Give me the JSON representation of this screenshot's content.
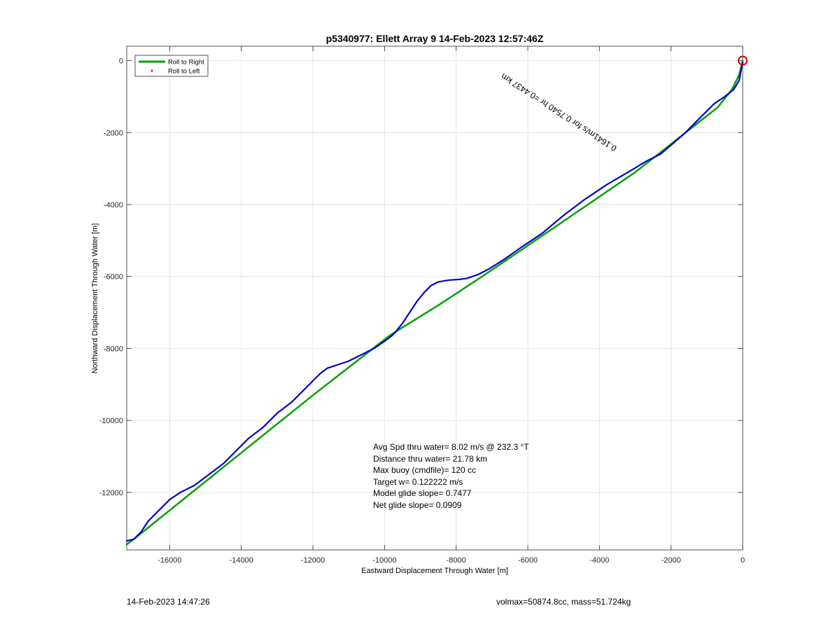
{
  "chart_data": {
    "type": "line",
    "title": "p5340977: Ellett Array 9 14-Feb-2023 12:57:46Z",
    "xlabel": "Eastward Displacement Through Water [m]",
    "ylabel": "Northward Displacement Through Water [m]",
    "xlim": [
      -17200,
      0
    ],
    "ylim": [
      -13600,
      400
    ],
    "x_ticks": [
      -16000,
      -14000,
      -12000,
      -10000,
      -8000,
      -6000,
      -4000,
      -2000,
      0
    ],
    "x_tick_labels": [
      "-16000",
      "-14000",
      "-12000",
      "-10000",
      "-8000",
      "-6000",
      "-4000",
      "-2000",
      "0"
    ],
    "y_ticks": [
      0,
      -2000,
      -4000,
      -6000,
      -8000,
      -10000,
      -12000
    ],
    "y_tick_labels": [
      "0",
      "-2000",
      "-4000",
      "-6000",
      "-8000",
      "-10000",
      "-12000"
    ],
    "grid": true,
    "legend_position": "top-left",
    "legend": [
      {
        "label": "Roll to Right",
        "color": "#00a000",
        "style": "line"
      },
      {
        "label": "Roll to Left",
        "color": "#ff0000",
        "style": "dot"
      }
    ],
    "series": [
      {
        "color": "#00a000",
        "x": [
          0,
          -100,
          -300,
          -700,
          -3000,
          -5500,
          -7200,
          -8500,
          -9800,
          -10000,
          -12000,
          -14000,
          -16500,
          -17000,
          -17200
        ],
        "y": [
          0,
          -400,
          -800,
          -1300,
          -3100,
          -4800,
          -5950,
          -6800,
          -7600,
          -7750,
          -9300,
          -10900,
          -12900,
          -13300,
          -13450
        ]
      },
      {
        "color": "#0000c8",
        "x": [
          0,
          -50,
          -100,
          -250,
          -500,
          -800,
          -1200,
          -1600,
          -2000,
          -2300,
          -2700,
          -3200,
          -3800,
          -4400,
          -5000,
          -5600,
          -6200,
          -6700,
          -7100,
          -7400,
          -7700,
          -7900,
          -8200,
          -8500,
          -8700,
          -8900,
          -9100,
          -9300,
          -9500,
          -9700,
          -9800,
          -10000,
          -10300,
          -10700,
          -11000,
          -11300,
          -11600,
          -11800,
          -12000,
          -12300,
          -12600,
          -13000,
          -13400,
          -13800,
          -14200,
          -14500,
          -14900,
          -15300,
          -15700,
          -16000,
          -16300,
          -16600,
          -16800,
          -17000,
          -17200
        ],
        "y": [
          -50,
          -300,
          -550,
          -800,
          -1000,
          -1200,
          -1600,
          -2000,
          -2350,
          -2600,
          -2800,
          -3100,
          -3450,
          -3850,
          -4300,
          -4800,
          -5200,
          -5550,
          -5800,
          -5950,
          -6050,
          -6080,
          -6100,
          -6150,
          -6250,
          -6450,
          -6700,
          -7000,
          -7300,
          -7550,
          -7650,
          -7800,
          -8000,
          -8200,
          -8350,
          -8450,
          -8550,
          -8700,
          -8900,
          -9200,
          -9500,
          -9800,
          -10200,
          -10500,
          -10900,
          -11200,
          -11500,
          -11800,
          -12000,
          -12200,
          -12500,
          -12800,
          -13100,
          -13300,
          -13350
        ]
      }
    ],
    "start_marker": {
      "x": 0,
      "y": 0,
      "color": "#cc0000"
    },
    "current_annotation": {
      "text": "0.1641m/s for 0.7540 hr =0.4437 km",
      "x": -3500,
      "y": -2400,
      "angle_deg": 33
    },
    "stats": [
      "Avg Spd thru water=  8.02 m/s @ 232.3 °T",
      "Distance thru water= 21.78 km",
      "Max buoy (cmdfile)= 120 cc",
      "Target w= 0.122222 m/s",
      "Model glide slope= 0.7477",
      "Net glide slope= 0.0909"
    ]
  },
  "footer": {
    "timestamp": "14-Feb-2023 14:47:26",
    "volmax": "volmax=50874.8cc, mass=51.724kg"
  }
}
